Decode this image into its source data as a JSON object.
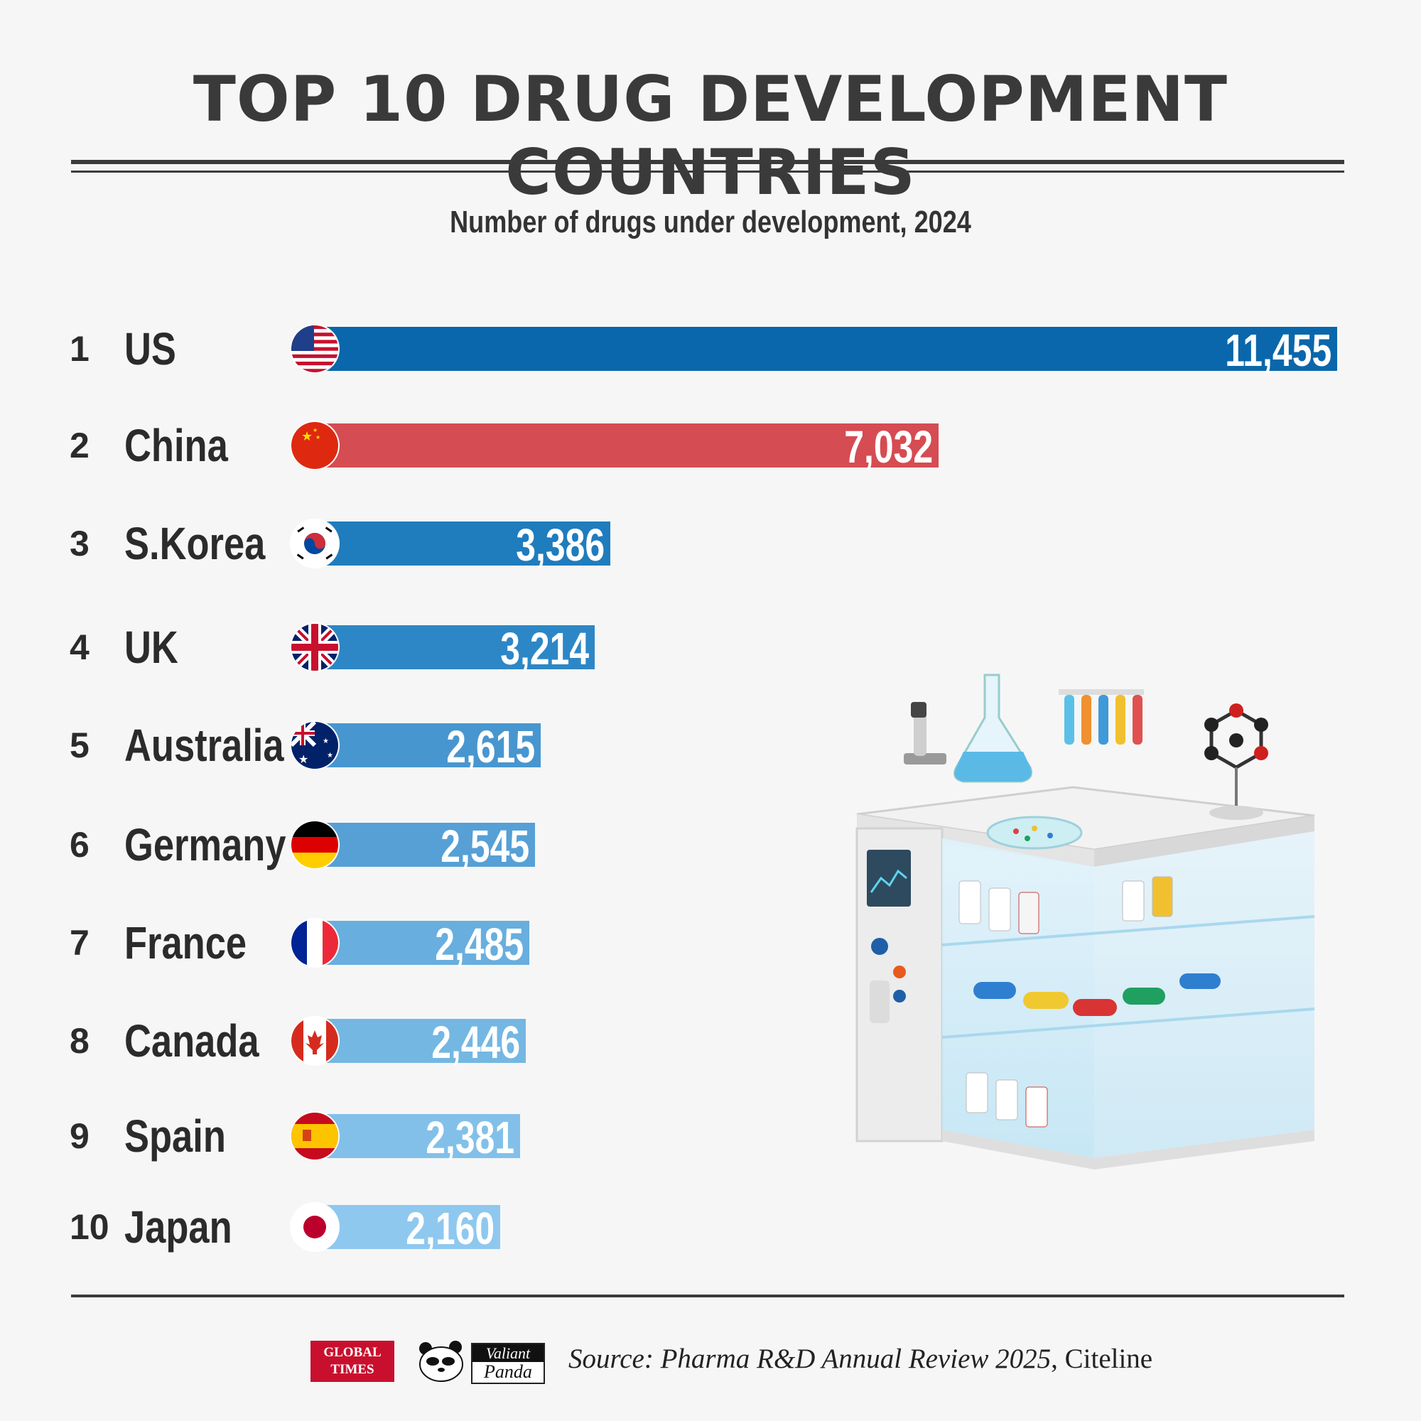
{
  "title": "TOP 10 DRUG DEVELOPMENT COUNTRIES",
  "subtitle": "Number of drugs under development, 2024",
  "source_prefix": "Source: ",
  "source_title": "Pharma R&D Annual Review 2025",
  "source_suffix": ", Citeline",
  "logos": {
    "global_times_line1": "GLOBAL",
    "global_times_line2": "TIMES",
    "valiant_panda_line1": "Valiant",
    "valiant_panda_line2": "Panda"
  },
  "chart_data": {
    "type": "bar",
    "orientation": "horizontal",
    "title": "TOP 10 DRUG DEVELOPMENT COUNTRIES",
    "subtitle": "Number of drugs under development, 2024",
    "xlabel": "",
    "ylabel": "",
    "xlim": [
      0,
      11455
    ],
    "categories": [
      "US",
      "China",
      "S.Korea",
      "UK",
      "Australia",
      "Germany",
      "France",
      "Canada",
      "Spain",
      "Japan"
    ],
    "ranks": [
      "1",
      "2",
      "3",
      "4",
      "5",
      "6",
      "7",
      "8",
      "9",
      "10"
    ],
    "values": [
      11455,
      7032,
      3386,
      3214,
      2615,
      2545,
      2485,
      2446,
      2381,
      2160
    ],
    "value_labels": [
      "11,455",
      "7,032",
      "3,386",
      "3,214",
      "2,615",
      "2,545",
      "2,485",
      "2,446",
      "2,381",
      "2,160"
    ],
    "bar_colors": [
      "#0a67ab",
      "#d54c52",
      "#1f7cbd",
      "#2d87c6",
      "#4896cf",
      "#56a0d6",
      "#68aede",
      "#74b7e3",
      "#82c0ea",
      "#8ec8ef"
    ],
    "flag_icons": [
      "us-flag-icon",
      "china-flag-icon",
      "south-korea-flag-icon",
      "uk-flag-icon",
      "australia-flag-icon",
      "germany-flag-icon",
      "france-flag-icon",
      "canada-flag-icon",
      "spain-flag-icon",
      "japan-flag-icon"
    ]
  }
}
